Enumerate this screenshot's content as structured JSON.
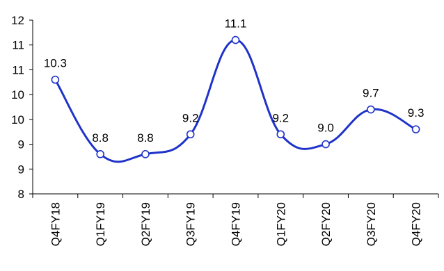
{
  "chart_data": {
    "type": "line",
    "smooth": true,
    "categories": [
      "Q4FY18",
      "Q1FY19",
      "Q2FY19",
      "Q3FY19",
      "Q4FY19",
      "Q1FY20",
      "Q2FY20",
      "Q3FY20",
      "Q4FY20"
    ],
    "values": [
      10.3,
      8.8,
      8.8,
      9.2,
      11.1,
      9.2,
      9.0,
      9.7,
      9.3
    ],
    "data_labels": [
      "10.3",
      "8.8",
      "8.8",
      "9.2",
      "11.1",
      "9.2",
      "9.0",
      "9.7",
      "9.3"
    ],
    "y_tick_labels": [
      "8",
      "9",
      "9",
      "10",
      "10",
      "11",
      "11",
      "12"
    ],
    "ylim": [
      8.0,
      11.5
    ],
    "title": "",
    "xlabel": "",
    "ylabel": "",
    "grid": false,
    "legend": "none",
    "line_color": "#1f33c9",
    "marker": "open-circle"
  }
}
